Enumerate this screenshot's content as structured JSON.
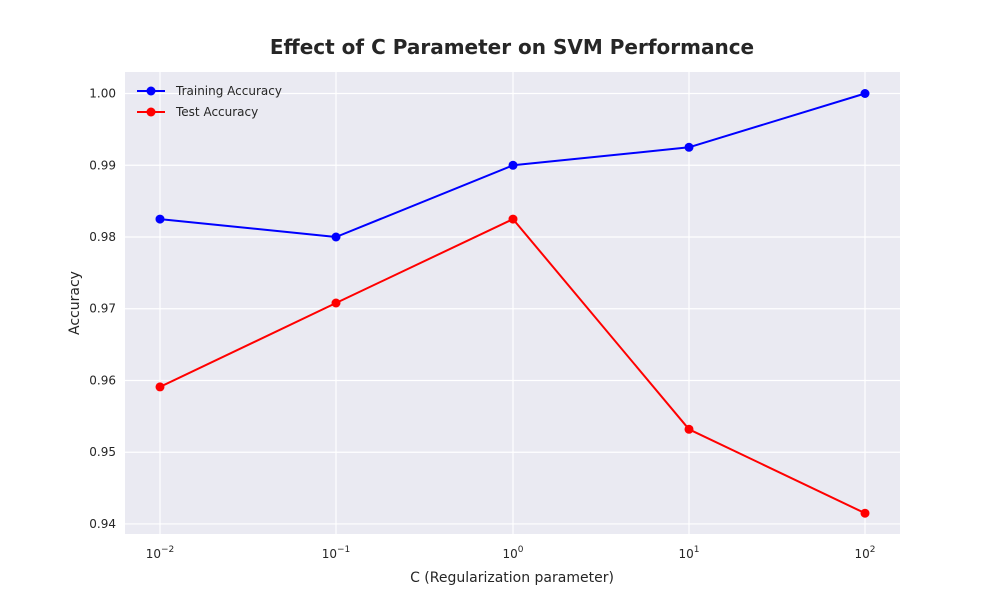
{
  "chart_data": {
    "type": "line",
    "title": "Effect of C Parameter on SVM Performance",
    "xlabel": "C (Regularization parameter)",
    "ylabel": "Accuracy",
    "xscale": "log",
    "x": [
      0.01,
      0.1,
      1,
      10,
      100
    ],
    "x_tick_labels": [
      {
        "base": "10",
        "exp": "−2"
      },
      {
        "base": "10",
        "exp": "−1"
      },
      {
        "base": "10",
        "exp": "0"
      },
      {
        "base": "10",
        "exp": "1"
      },
      {
        "base": "10",
        "exp": "2"
      }
    ],
    "y_ticks": [
      "0.94",
      "0.95",
      "0.96",
      "0.97",
      "0.98",
      "0.99",
      "1.00"
    ],
    "ylim": [
      0.9386,
      1.003
    ],
    "grid": true,
    "legend_position": "top-left",
    "background": "#eaeaf2",
    "series": [
      {
        "name": "Training Accuracy",
        "color": "#0000ff",
        "marker": "circle",
        "values": [
          0.9825,
          0.98,
          0.99,
          0.9925,
          1.0
        ]
      },
      {
        "name": "Test Accuracy",
        "color": "#ff0000",
        "marker": "circle",
        "values": [
          0.9591,
          0.9708,
          0.9825,
          0.9532,
          0.9415
        ]
      }
    ]
  }
}
